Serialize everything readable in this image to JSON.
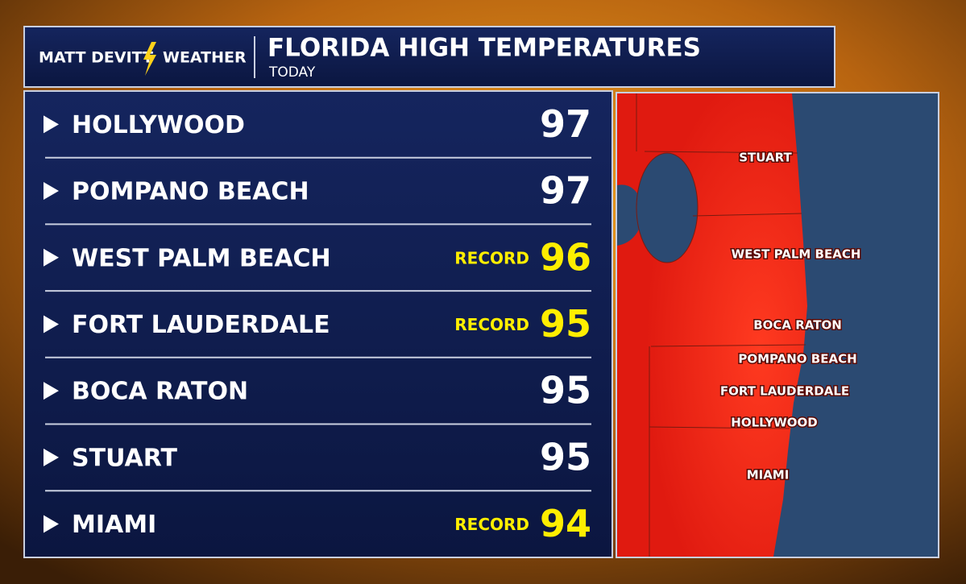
{
  "brand": {
    "left": "MATT DEVITT",
    "right": "WEATHER"
  },
  "header": {
    "title": "FLORIDA HIGH TEMPERATURES",
    "subtitle": "TODAY"
  },
  "rows": [
    {
      "city": "HOLLYWOOD",
      "temp": 97
    },
    {
      "city": "POMPANO BEACH",
      "temp": 97
    },
    {
      "city": "WEST PALM BEACH",
      "badge": "RECORD",
      "temp": 96
    },
    {
      "city": "FORT LAUDERDALE",
      "badge": "RECORD",
      "temp": 95
    },
    {
      "city": "BOCA RATON",
      "temp": 95
    },
    {
      "city": "STUART",
      "temp": 95
    },
    {
      "city": "MIAMI",
      "badge": "RECORD",
      "temp": 94
    }
  ],
  "map": {
    "labels": [
      "STUART",
      "WEST PALM BEACH",
      "BOCA RATON",
      "POMPANO BEACH",
      "FORT LAUDERDALE",
      "HOLLYWOOD",
      "MIAMI"
    ]
  }
}
